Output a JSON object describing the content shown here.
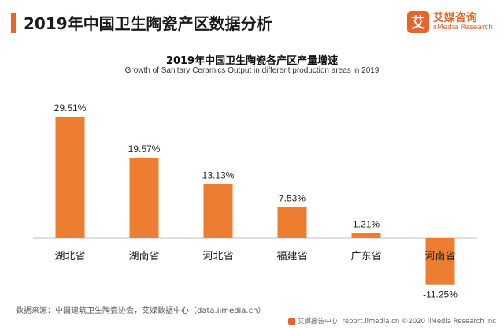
{
  "header": {
    "title": "2019年中国卫生陶瓷产区数据分析"
  },
  "logo": {
    "mark": "艾",
    "name_cn": "艾媒咨询",
    "name_en": "iiMedia Research"
  },
  "source": "数据来源：中国建筑卫生陶瓷协会，艾媒数据中心（data.iimedia.cn）",
  "footer": {
    "text": "艾媒报告中心: report.iimedia.cn ©2020  iiMedia Research Inc",
    "icon": "iimedia-logo-icon"
  },
  "colors": {
    "accent": "#e8642a",
    "bar": "#ed7d31"
  },
  "chart_data": {
    "type": "bar",
    "title": "2019年中国卫生陶瓷各产区产量增速",
    "subtitle": "Growth of  Sanitary Ceramics Output in different production areas in 2019",
    "categories": [
      "湖北省",
      "湖南省",
      "河北省",
      "福建省",
      "广东省",
      "河南省"
    ],
    "values": [
      29.51,
      19.57,
      13.13,
      7.53,
      1.21,
      -11.25
    ],
    "data_labels": [
      "29.51%",
      "19.57%",
      "13.13%",
      "7.53%",
      "1.21%",
      "-11.25%"
    ],
    "ylim": [
      -11.25,
      29.51
    ],
    "grid": false,
    "legend": "none"
  }
}
